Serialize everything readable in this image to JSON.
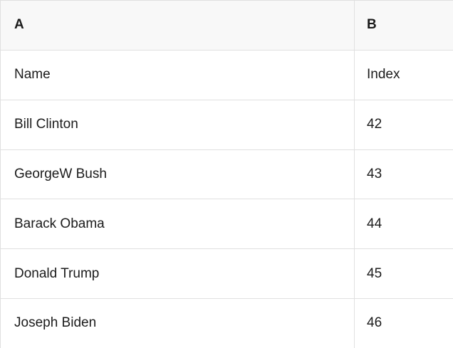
{
  "table": {
    "columns": [
      {
        "label": "A"
      },
      {
        "label": "B"
      }
    ],
    "field_row": {
      "name_label": "Name",
      "index_label": "Index"
    },
    "rows": [
      {
        "name": "Name",
        "index": "Index"
      },
      {
        "name": "Bill Clinton",
        "index": "42"
      },
      {
        "name": "GeorgeW Bush",
        "index": "43"
      },
      {
        "name": "Barack Obama",
        "index": "44"
      },
      {
        "name": "Donald Trump",
        "index": "45"
      },
      {
        "name": "Joseph Biden",
        "index": "46"
      }
    ],
    "colors": {
      "header_bg": "#f8f8f8",
      "grid_border": "#e0e0e0",
      "cell_bg": "#ffffff",
      "text": "#1b1b1b"
    }
  }
}
